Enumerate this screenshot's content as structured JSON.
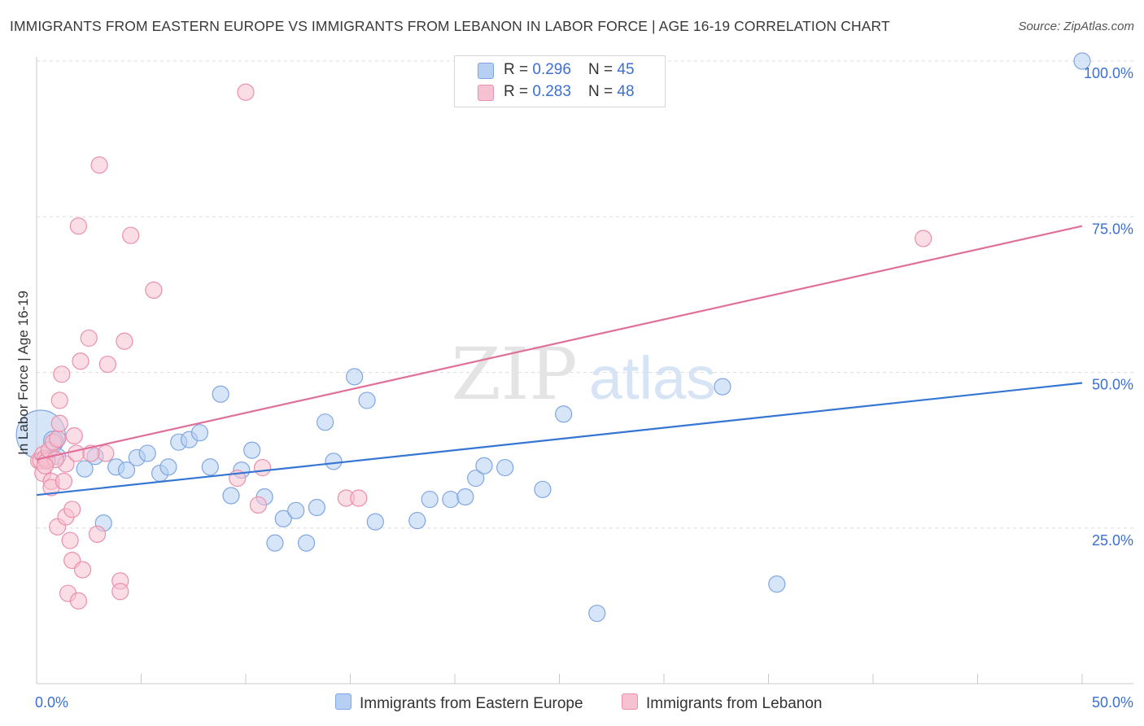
{
  "title": "IMMIGRANTS FROM EASTERN EUROPE VS IMMIGRANTS FROM LEBANON IN LABOR FORCE | AGE 16-19 CORRELATION CHART",
  "source": "Source: ZipAtlas.com",
  "watermark": {
    "zip": "ZIP",
    "atlas": "atlas"
  },
  "colors": {
    "blue_fill": "#b7cff3",
    "blue_stroke": "#7fa6e2",
    "blue_line": "#3575d3",
    "pink_fill": "#f6c1d0",
    "pink_stroke": "#ea8fac",
    "pink_line": "#e0709a",
    "tick_label": "#3b6fd4",
    "grid": "#dcdcdc"
  },
  "legend": {
    "items": [
      {
        "r_label": "R = ",
        "r_value": "0.296",
        "n_label": "N = ",
        "n_value": "45"
      },
      {
        "r_label": "R = ",
        "r_value": "0.283",
        "n_label": "N = ",
        "n_value": "48"
      }
    ]
  },
  "chart_data": {
    "type": "scatter",
    "title": "IMMIGRANTS FROM EASTERN EUROPE VS IMMIGRANTS FROM LEBANON IN LABOR FORCE | AGE 16-19 CORRELATION CHART",
    "xlabel": "",
    "ylabel": "In Labor Force | Age 16-19",
    "xlim": [
      0,
      50
    ],
    "ylim": [
      0,
      102
    ],
    "x_tick_labels": [
      "0.0%",
      "50.0%"
    ],
    "y_ticks": [
      25,
      50,
      75,
      100
    ],
    "y_tick_labels": [
      "25.0%",
      "50.0%",
      "75.0%",
      "100.0%"
    ],
    "grid": true,
    "legend_position": "top-center",
    "series": [
      {
        "name": "Immigrants from Eastern Europe",
        "r": 0.296,
        "n": 45,
        "trend": [
          [
            0,
            30.3
          ],
          [
            50,
            48.3
          ]
        ],
        "points": [
          [
            0.2,
            40.0,
            30
          ],
          [
            0.8,
            39.0,
            12
          ],
          [
            1.0,
            36.5,
            10
          ],
          [
            2.3,
            34.5,
            10
          ],
          [
            2.8,
            36.5,
            10
          ],
          [
            3.2,
            25.8,
            10
          ],
          [
            3.8,
            34.8,
            10
          ],
          [
            4.3,
            34.3,
            10
          ],
          [
            4.8,
            36.3,
            10
          ],
          [
            5.3,
            37.0,
            10
          ],
          [
            5.9,
            33.8,
            10
          ],
          [
            6.3,
            34.8,
            10
          ],
          [
            6.8,
            38.8,
            10
          ],
          [
            7.3,
            39.2,
            10
          ],
          [
            7.8,
            40.3,
            10
          ],
          [
            8.3,
            34.8,
            10
          ],
          [
            8.8,
            46.5,
            10
          ],
          [
            9.3,
            30.2,
            10
          ],
          [
            9.8,
            34.3,
            10
          ],
          [
            10.3,
            37.5,
            10
          ],
          [
            10.9,
            30.0,
            10
          ],
          [
            11.4,
            22.6,
            10
          ],
          [
            11.8,
            26.5,
            10
          ],
          [
            12.4,
            27.8,
            10
          ],
          [
            12.9,
            22.6,
            10
          ],
          [
            13.4,
            28.3,
            10
          ],
          [
            13.8,
            42.0,
            10
          ],
          [
            14.2,
            35.7,
            10
          ],
          [
            15.2,
            49.3,
            10
          ],
          [
            15.8,
            45.5,
            10
          ],
          [
            16.2,
            26.0,
            10
          ],
          [
            18.2,
            26.2,
            10
          ],
          [
            18.8,
            29.6,
            10
          ],
          [
            19.8,
            29.6,
            10
          ],
          [
            20.5,
            30.0,
            10
          ],
          [
            21.0,
            33.0,
            10
          ],
          [
            21.4,
            35.0,
            10
          ],
          [
            22.4,
            34.7,
            10
          ],
          [
            24.2,
            31.2,
            10
          ],
          [
            25.2,
            43.3,
            10
          ],
          [
            26.8,
            11.3,
            10
          ],
          [
            32.8,
            47.7,
            10
          ],
          [
            35.4,
            16.0,
            10
          ],
          [
            50.0,
            100.0,
            10
          ],
          [
            0.5,
            36.0,
            10
          ]
        ]
      },
      {
        "name": "Immigrants from Lebanon",
        "r": 0.283,
        "n": 48,
        "trend": [
          [
            0,
            36.0
          ],
          [
            50,
            73.5
          ]
        ],
        "points": [
          [
            0.1,
            35.8,
            10
          ],
          [
            0.2,
            35.8,
            10
          ],
          [
            0.3,
            36.8,
            10
          ],
          [
            0.3,
            33.8,
            10
          ],
          [
            0.4,
            36.2,
            10
          ],
          [
            0.5,
            35.8,
            10
          ],
          [
            0.6,
            37.5,
            10
          ],
          [
            0.7,
            32.5,
            10
          ],
          [
            0.7,
            31.5,
            10
          ],
          [
            0.8,
            38.8,
            10
          ],
          [
            1.0,
            39.3,
            10
          ],
          [
            1.0,
            25.2,
            10
          ],
          [
            1.1,
            41.8,
            10
          ],
          [
            1.1,
            45.5,
            10
          ],
          [
            1.2,
            49.7,
            10
          ],
          [
            1.3,
            32.5,
            10
          ],
          [
            1.4,
            26.8,
            10
          ],
          [
            1.4,
            35.3,
            10
          ],
          [
            1.5,
            14.5,
            10
          ],
          [
            1.6,
            23.0,
            10
          ],
          [
            1.7,
            28.0,
            10
          ],
          [
            1.7,
            19.8,
            10
          ],
          [
            1.8,
            39.8,
            10
          ],
          [
            2.0,
            13.3,
            10
          ],
          [
            2.0,
            73.5,
            10
          ],
          [
            2.1,
            51.8,
            10
          ],
          [
            2.2,
            18.3,
            10
          ],
          [
            2.5,
            55.5,
            10
          ],
          [
            2.9,
            24.0,
            10
          ],
          [
            3.0,
            83.3,
            10
          ],
          [
            3.3,
            37.0,
            10
          ],
          [
            3.4,
            51.3,
            10
          ],
          [
            4.0,
            16.5,
            10
          ],
          [
            4.0,
            14.8,
            10
          ],
          [
            4.2,
            55.0,
            10
          ],
          [
            4.5,
            72.0,
            10
          ],
          [
            5.6,
            63.2,
            10
          ],
          [
            9.6,
            33.0,
            10
          ],
          [
            10.0,
            95.0,
            10
          ],
          [
            10.6,
            28.7,
            10
          ],
          [
            10.8,
            34.7,
            10
          ],
          [
            14.8,
            29.8,
            10
          ],
          [
            15.4,
            29.8,
            10
          ],
          [
            42.4,
            71.5,
            10
          ],
          [
            0.9,
            36.0,
            10
          ],
          [
            1.9,
            37.0,
            10
          ],
          [
            0.4,
            35.0,
            10
          ],
          [
            2.6,
            37.0,
            10
          ]
        ]
      }
    ]
  }
}
